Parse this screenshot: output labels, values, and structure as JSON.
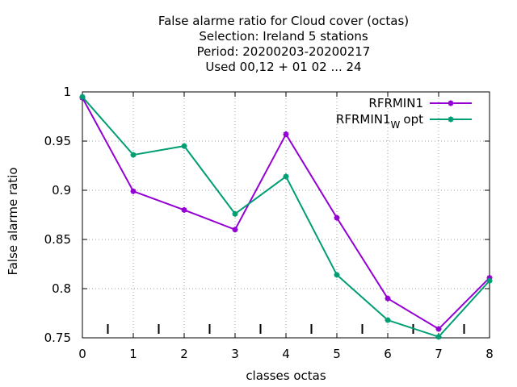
{
  "chart_data": {
    "type": "line",
    "title_lines": [
      "False alarme ratio  for Cloud cover (octas)",
      "Selection: Ireland      5 stations",
      "Period: 20200203-20200217",
      "Used  00,12  + 01 02 ... 24"
    ],
    "xlabel": "classes octas",
    "ylabel": "False alarme ratio",
    "xlim": [
      0,
      8
    ],
    "ylim": [
      0.75,
      1.0
    ],
    "x_ticks": [
      0,
      1,
      2,
      3,
      4,
      5,
      6,
      7,
      8
    ],
    "y_ticks": [
      0.75,
      0.8,
      0.85,
      0.9,
      0.95,
      1.0
    ],
    "y_tick_labels": [
      "0.75",
      "0.8",
      "0.85",
      "0.9",
      "0.95",
      "1"
    ],
    "minor_tick_marks_x": [
      0.5,
      1.5,
      2.5,
      3.5,
      4.5,
      5.5,
      6.5,
      7.5
    ],
    "grid": true,
    "legend_position": "top-right",
    "series": [
      {
        "name": "RFRMIN1",
        "color": "#9400d3",
        "x": [
          0,
          1,
          2,
          3,
          4,
          5,
          6,
          7,
          8
        ],
        "values": [
          0.994,
          0.899,
          0.88,
          0.86,
          0.957,
          0.872,
          0.79,
          0.759,
          0.811
        ]
      },
      {
        "name": "RFRMIN1",
        "name_subscript": "W",
        "name_suffix": "opt",
        "color": "#009e73",
        "x": [
          0,
          1,
          2,
          3,
          4,
          5,
          6,
          7,
          8
        ],
        "values": [
          0.995,
          0.936,
          0.945,
          0.876,
          0.914,
          0.814,
          0.768,
          0.751,
          0.808
        ]
      }
    ]
  }
}
